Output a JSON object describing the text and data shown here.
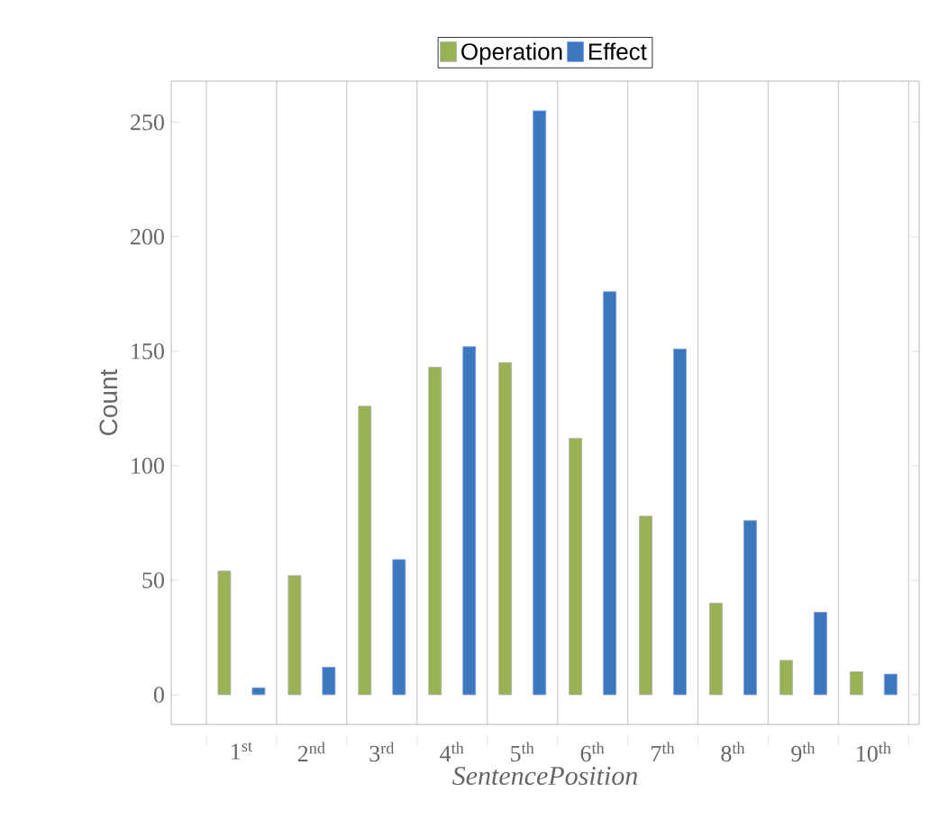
{
  "chart_data": {
    "type": "bar",
    "xlabel": "SentencePosition",
    "ylabel": "Count",
    "categories": [
      "1$^{st}$",
      "2$^{nd}$",
      "3$^{rd}$",
      "4$^{th}$",
      "5$^{th}$",
      "6$^{th}$",
      "7$^{th}$",
      "8$^{th}$",
      "9$^{th}$",
      "10$^{th}$"
    ],
    "series": [
      {
        "name": "Operation",
        "color": "#9bb254",
        "values": [
          54,
          52,
          126,
          143,
          145,
          112,
          78,
          40,
          15,
          10
        ]
      },
      {
        "name": "Effect",
        "color": "#3b78be",
        "values": [
          3,
          12,
          59,
          152,
          255,
          176,
          151,
          76,
          36,
          9
        ]
      }
    ],
    "ylim": [
      -13,
      268
    ],
    "yticks": [
      0,
      50,
      100,
      150,
      200,
      250
    ],
    "grid": "x",
    "legend": "top"
  }
}
